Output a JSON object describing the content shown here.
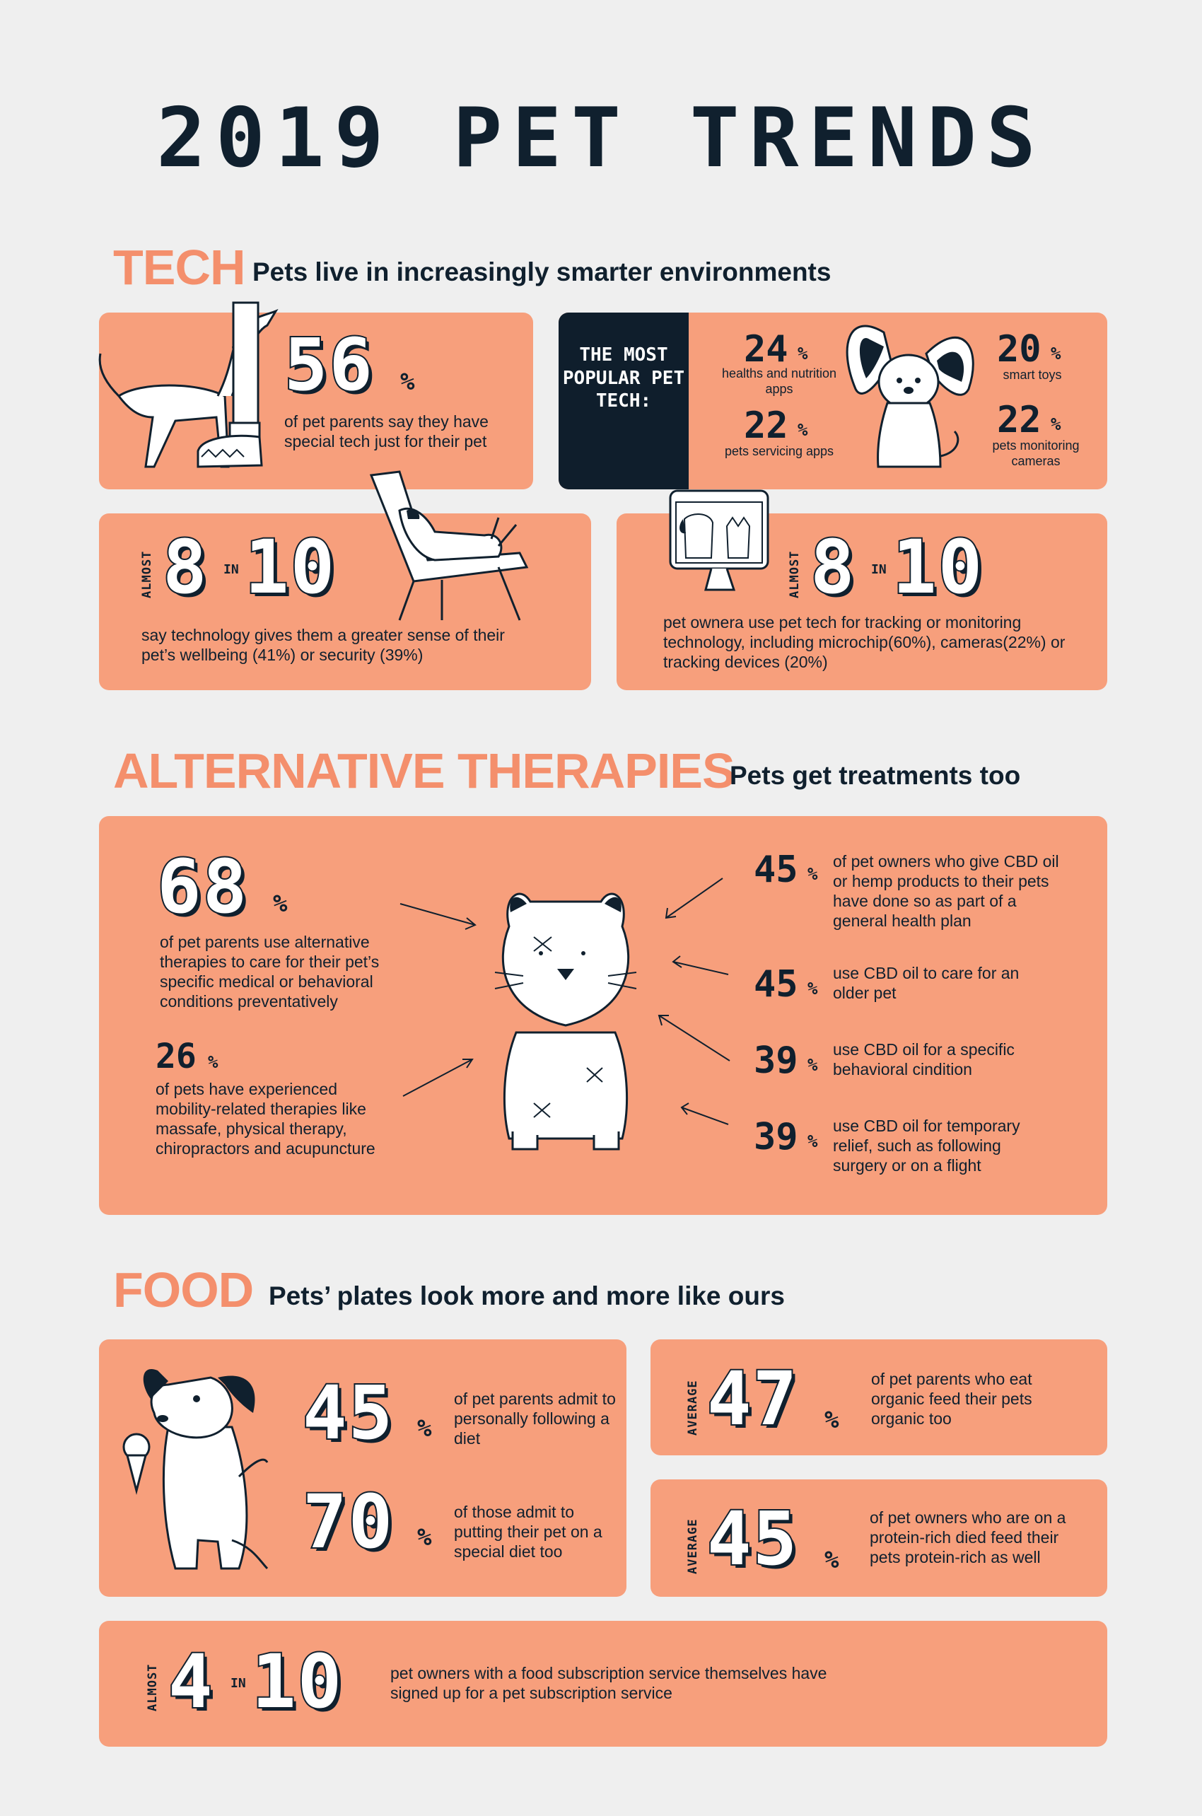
{
  "title": "2019 PET TRENDS",
  "tech": {
    "heading": "TECH",
    "subheading": "Pets live in increasingly smarter environments",
    "stat56": {
      "value": "56",
      "unit": "%",
      "text": "of pet parents say they have special tech just for their pet"
    },
    "popular": {
      "label": "THE MOST POPULAR PET TECH:",
      "items": [
        {
          "value": "24",
          "unit": "%",
          "text": "healths and nutrition apps"
        },
        {
          "value": "22",
          "unit": "%",
          "text": "pets servicing apps"
        },
        {
          "value": "20",
          "unit": "%",
          "text": "smart toys"
        },
        {
          "value": "22",
          "unit": "%",
          "text": "pets monitoring cameras"
        }
      ]
    },
    "wellbeing": {
      "prefix": "ALMOST",
      "num": "8",
      "in": "IN",
      "den": "10",
      "text": "say technology gives them a greater sense of their pet’s wellbeing (41%) or security (39%)"
    },
    "tracking": {
      "prefix": "ALMOST",
      "num": "8",
      "in": "IN",
      "den": "10",
      "text": "pet ownera use pet tech for tracking or monitoring technology, including microchip(60%), cameras(22%) or tracking devices (20%)"
    }
  },
  "therapies": {
    "heading": "ALTERNATIVE THERAPIES",
    "subheading": "Pets get treatments too",
    "left": [
      {
        "value": "68",
        "unit": "%",
        "text": "of pet parents use alternative therapies to care for their pet’s specific medical or behavioral conditions preventatively"
      },
      {
        "value": "26",
        "unit": "%",
        "text": "of pets have experienced mobility-related therapies like massafe, physical therapy, chiropractors and acupuncture"
      }
    ],
    "right": [
      {
        "value": "45",
        "unit": "%",
        "text": "of pet owners who give CBD oil or hemp products to their pets have done so as part of a general health plan"
      },
      {
        "value": "45",
        "unit": "%",
        "text": "use CBD oil to care for an older pet"
      },
      {
        "value": "39",
        "unit": "%",
        "text": "use CBD oil for a specific behavioral cindition"
      },
      {
        "value": "39",
        "unit": "%",
        "text": "use CBD oil for temporary relief, such as following surgery or on a flight"
      }
    ]
  },
  "food": {
    "heading": "FOOD",
    "subheading": "Pets’ plates look more and more like ours",
    "diet": [
      {
        "value": "45",
        "unit": "%",
        "text": "of pet parents admit to personally following a diet"
      },
      {
        "value": "70",
        "unit": "%",
        "text": "of those admit to putting their pet on a special diet too"
      }
    ],
    "organic": {
      "prefix": "AVERAGE",
      "value": "47",
      "unit": "%",
      "text": "of pet parents who eat organic feed their pets organic too"
    },
    "protein": {
      "prefix": "AVERAGE",
      "value": "45",
      "unit": "%",
      "text": "of pet owners who are on a protein-rich died feed their pets protein-rich as well"
    },
    "subscription": {
      "prefix": "ALMOST",
      "num": "4",
      "in": "IN",
      "den": "10",
      "text": "pet owners with a food subscription service themselves have signed up for a pet subscription service"
    }
  },
  "colors": {
    "background": "#efefef",
    "card": "#f79f7c",
    "accent": "#f48f6c",
    "ink": "#10202e"
  }
}
